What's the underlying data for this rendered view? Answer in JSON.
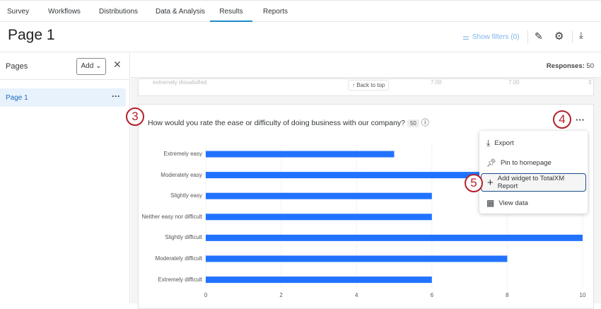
{
  "nav": {
    "tabs": [
      "Survey",
      "Workflows",
      "Distributions",
      "Data & Analysis",
      "Results",
      "Reports"
    ],
    "active": "Results"
  },
  "header": {
    "title": "Page 1",
    "show_filters": "Show filters (0)"
  },
  "sidebar": {
    "title": "Pages",
    "add_label": "Add",
    "pages": [
      {
        "label": "Page 1"
      }
    ]
  },
  "responses": {
    "label": "Responses:",
    "value": "50"
  },
  "prev_card": {
    "row_label": "extremely dissatisfied",
    "back_to_top": "Back to top",
    "values": [
      "7.00",
      "7.00",
      "3"
    ]
  },
  "question": {
    "text": "How would you rate the ease or difficulty of doing business with our company?",
    "count": "50"
  },
  "callouts": [
    "3",
    "4",
    "5"
  ],
  "menu": {
    "items": [
      {
        "label": "Export",
        "icon": "download-icon"
      },
      {
        "label": "Pin to homepage",
        "icon": "pin-icon"
      },
      {
        "label": "Add widget to TotalXM Report",
        "icon": "plus-icon",
        "highlighted": true
      },
      {
        "label": "View data",
        "icon": "table-icon"
      }
    ]
  },
  "colors": {
    "bar": "#2173ff",
    "accent": "#1f8cc9",
    "callout": "#b4202a"
  },
  "chart_data": {
    "type": "bar",
    "orientation": "horizontal",
    "categories": [
      "Extremely easy",
      "Moderately easy",
      "Slightly easy",
      "Neither easy nor difficult",
      "Slightly difficult",
      "Moderately difficult",
      "Extremely difficult"
    ],
    "values": [
      5,
      9,
      6,
      6,
      10,
      8,
      6
    ],
    "xlim": [
      0,
      10
    ],
    "xticks": [
      "0",
      "2",
      "4",
      "6",
      "8",
      "10"
    ],
    "grid": true
  }
}
